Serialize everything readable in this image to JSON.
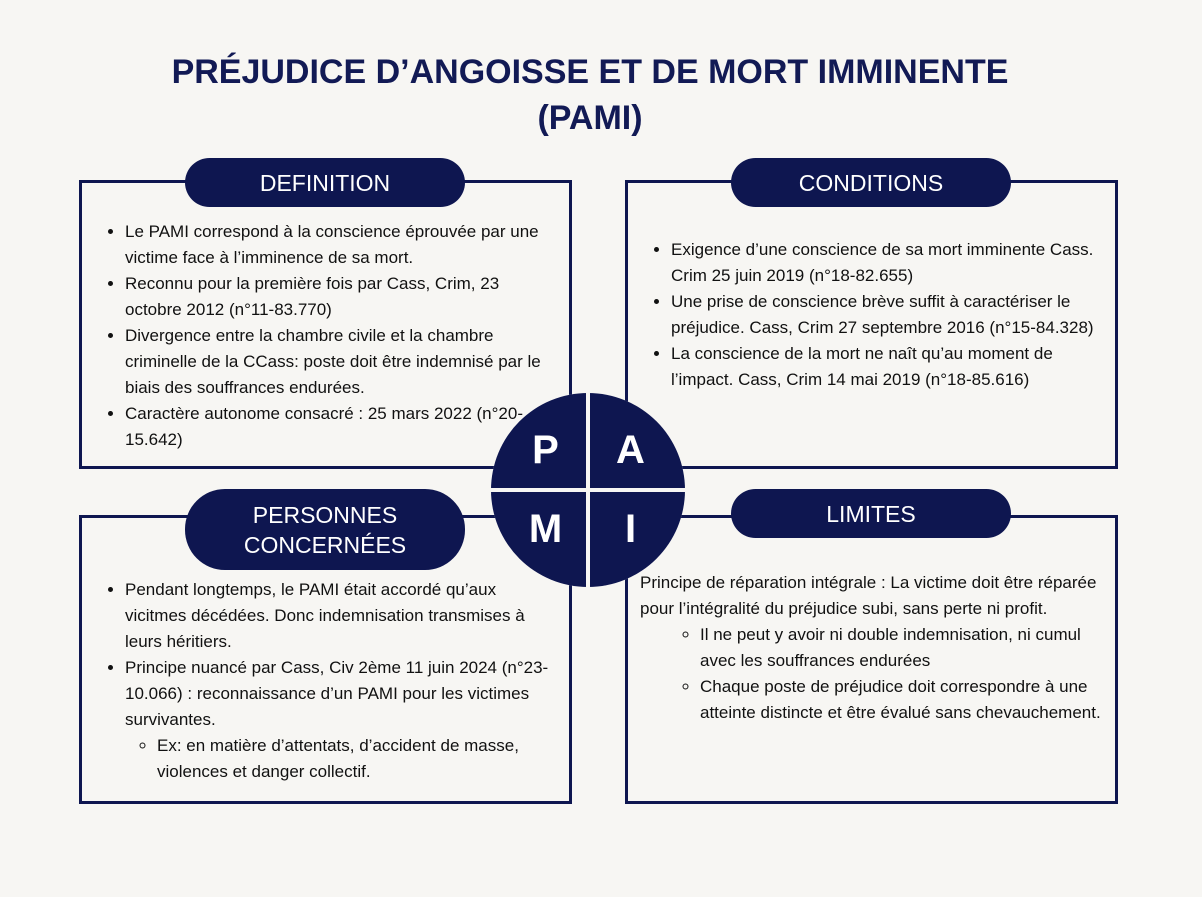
{
  "title": {
    "line1": "PRÉJUDICE D’ANGOISSE ET DE MORT IMMINENTE",
    "line2": "(PAMI)"
  },
  "colors": {
    "navy": "#0e1650",
    "background": "#f7f6f3"
  },
  "definition": {
    "label": "DEFINITION",
    "items": [
      "Le PAMI correspond à la conscience éprouvée par une victime face à l’imminence de sa mort.",
      "Reconnu pour la première fois par Cass, Crim, 23 octobre 2012 (n°11-83.770)",
      "Divergence entre la chambre civile et la chambre criminelle de la CCass:  poste doit être indemnisé par le biais des souffrances endurées.",
      "Caractère autonome consacré : 25 mars 2022 (n°20-15.642)"
    ]
  },
  "conditions": {
    "label": "CONDITIONS",
    "items": [
      "Exigence d’une conscience de sa mort imminente Cass. Crim 25 juin 2019 (n°18-82.655)",
      "Une prise de conscience brève suffit à caractériser le préjudice. Cass, Crim 27 septembre 2016 (n°15-84.328)",
      "La conscience de la mort ne naît qu’au moment de l’impact. Cass, Crim 14 mai 2019 (n°18-85.616)"
    ]
  },
  "personnes": {
    "label": "PERSONNES CONCERNÉES",
    "items": [
      "Pendant longtemps, le PAMI était accordé qu’aux vicitmes décédées. Donc indemnisation transmises à leurs héritiers.",
      "Principe nuancé par Cass, Civ 2ème 11 juin 2024 (n°23-10.066) : reconnaissance d’un PAMI pour les victimes survivantes."
    ],
    "subitems": [
      "Ex: en matière d’attentats, d’accident de masse, violences et danger collectif."
    ]
  },
  "limites": {
    "label": "LIMITES",
    "intro": "Principe de réparation intégrale : La victime doit être réparée pour l’intégralité du préjudice subi, sans perte ni profit.",
    "subitems": [
      "Il ne peut  y avoir ni double indemnisation, ni cumul avec les souffrances endurées",
      "Chaque poste de préjudice doit correspondre à une atteinte distincte et être évalué sans chevauchement."
    ]
  },
  "acronym": {
    "p": "P",
    "a": "A",
    "m": "M",
    "i": "I"
  }
}
